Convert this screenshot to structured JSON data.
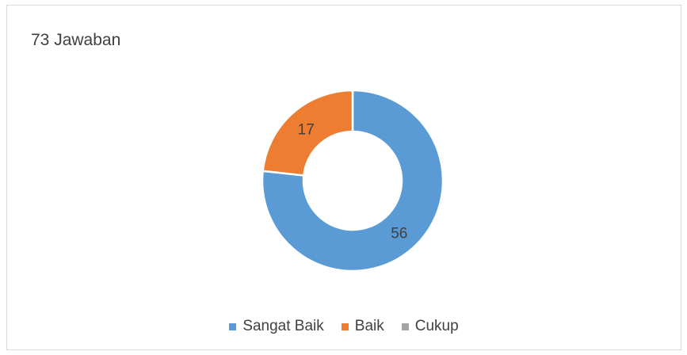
{
  "chart_data": {
    "type": "pie",
    "title": "73 Jawaban",
    "categories": [
      "Sangat Baik",
      "Baik",
      "Cukup"
    ],
    "values": [
      56,
      17,
      0
    ],
    "colors": [
      "#5b9bd5",
      "#ed7d31",
      "#a5a5a5"
    ],
    "data_labels": [
      "56",
      "17",
      ""
    ],
    "legend_position": "bottom"
  }
}
